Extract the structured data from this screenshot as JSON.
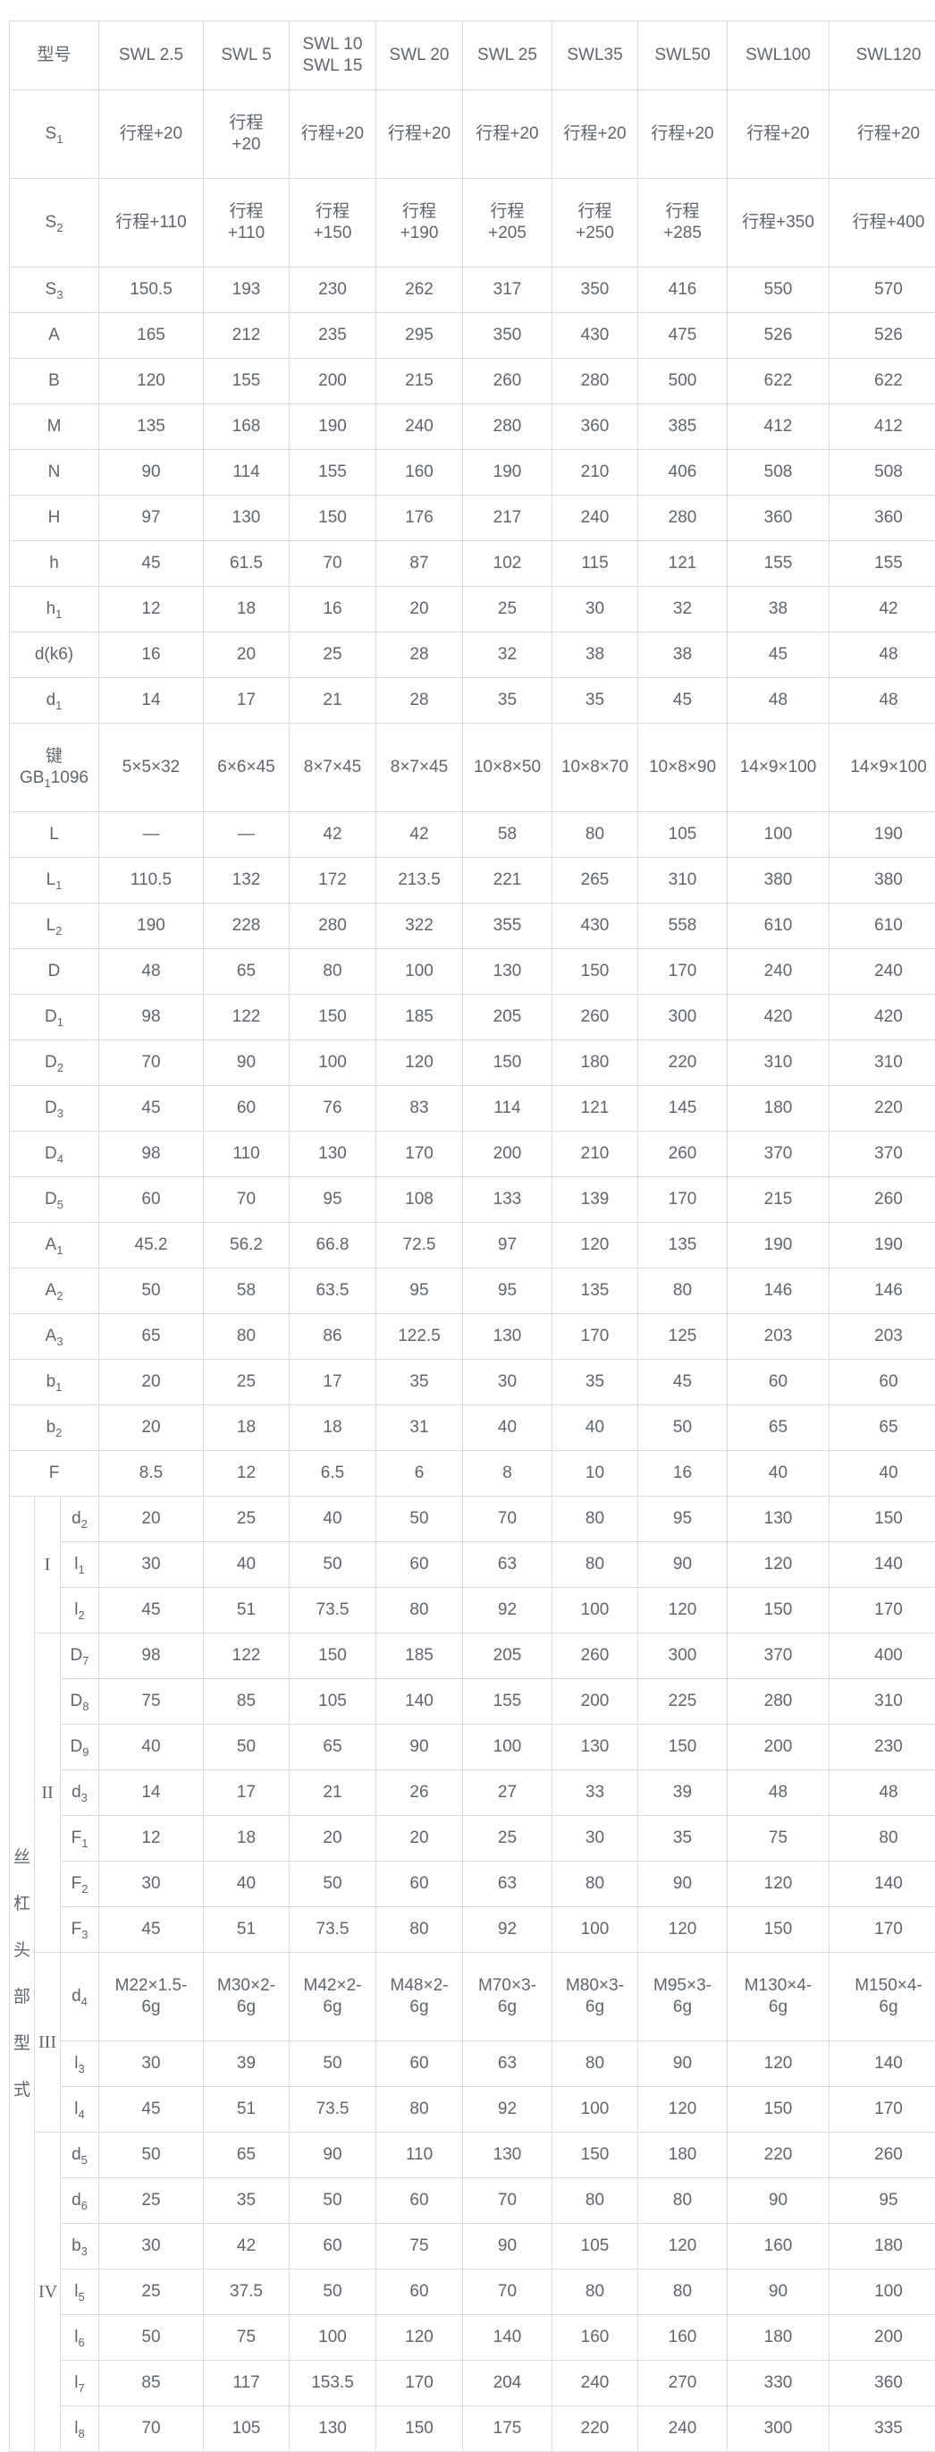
{
  "colors": {
    "text": "#5f656b",
    "border": "#d9dbdd",
    "background": "#ffffff"
  },
  "table": {
    "header": {
      "model_label": "型号",
      "columns": [
        "SWL 2.5",
        "SWL 5",
        "SWL 10\nSWL 15",
        "SWL 20",
        "SWL 25",
        "SWL35",
        "SWL50",
        "SWL100",
        "SWL120"
      ]
    },
    "main_rows": [
      {
        "label": "S_1",
        "tall": true,
        "values": [
          "行程+20",
          "行程\n+20",
          "行程+20",
          "行程+20",
          "行程+20",
          "行程+20",
          "行程+20",
          "行程+20",
          "行程+20"
        ]
      },
      {
        "label": "S_2",
        "tall": true,
        "values": [
          "行程+110",
          "行程\n+110",
          "行程\n+150",
          "行程\n+190",
          "行程\n+205",
          "行程\n+250",
          "行程\n+285",
          "行程+350",
          "行程+400"
        ]
      },
      {
        "label": "S_3",
        "values": [
          "150.5",
          "193",
          "230",
          "262",
          "317",
          "350",
          "416",
          "550",
          "570"
        ]
      },
      {
        "label": "A",
        "values": [
          "165",
          "212",
          "235",
          "295",
          "350",
          "430",
          "475",
          "526",
          "526"
        ]
      },
      {
        "label": "B",
        "values": [
          "120",
          "155",
          "200",
          "215",
          "260",
          "280",
          "500",
          "622",
          "622"
        ]
      },
      {
        "label": "M",
        "values": [
          "135",
          "168",
          "190",
          "240",
          "280",
          "360",
          "385",
          "412",
          "412"
        ]
      },
      {
        "label": "N",
        "values": [
          "90",
          "114",
          "155",
          "160",
          "190",
          "210",
          "406",
          "508",
          "508"
        ]
      },
      {
        "label": "H",
        "values": [
          "97",
          "130",
          "150",
          "176",
          "217",
          "240",
          "280",
          "360",
          "360"
        ]
      },
      {
        "label": "h",
        "values": [
          "45",
          "61.5",
          "70",
          "87",
          "102",
          "115",
          "121",
          "155",
          "155"
        ]
      },
      {
        "label": "h_1",
        "values": [
          "12",
          "18",
          "16",
          "20",
          "25",
          "30",
          "32",
          "38",
          "42"
        ]
      },
      {
        "label": "d(k6)",
        "values": [
          "16",
          "20",
          "25",
          "28",
          "32",
          "38",
          "38",
          "45",
          "48"
        ]
      },
      {
        "label": "d_1",
        "values": [
          "14",
          "17",
          "21",
          "28",
          "35",
          "35",
          "45",
          "48",
          "48"
        ]
      },
      {
        "label": "键\nGB_1_1096",
        "tall": true,
        "values": [
          "5×5×32",
          "6×6×45",
          "8×7×45",
          "8×7×45",
          "10×8×50",
          "10×8×70",
          "10×8×90",
          "14×9×100",
          "14×9×100"
        ]
      },
      {
        "label": "L",
        "values": [
          "—",
          "—",
          "42",
          "42",
          "58",
          "80",
          "105",
          "100",
          "190"
        ]
      },
      {
        "label": "L_1",
        "values": [
          "110.5",
          "132",
          "172",
          "213.5",
          "221",
          "265",
          "310",
          "380",
          "380"
        ]
      },
      {
        "label": "L_2",
        "values": [
          "190",
          "228",
          "280",
          "322",
          "355",
          "430",
          "558",
          "610",
          "610"
        ]
      },
      {
        "label": "D",
        "values": [
          "48",
          "65",
          "80",
          "100",
          "130",
          "150",
          "170",
          "240",
          "240"
        ]
      },
      {
        "label": "D_1",
        "values": [
          "98",
          "122",
          "150",
          "185",
          "205",
          "260",
          "300",
          "420",
          "420"
        ]
      },
      {
        "label": "D_2",
        "values": [
          "70",
          "90",
          "100",
          "120",
          "150",
          "180",
          "220",
          "310",
          "310"
        ]
      },
      {
        "label": "D_3",
        "values": [
          "45",
          "60",
          "76",
          "83",
          "114",
          "121",
          "145",
          "180",
          "220"
        ]
      },
      {
        "label": "D_4",
        "values": [
          "98",
          "110",
          "130",
          "170",
          "200",
          "210",
          "260",
          "370",
          "370"
        ]
      },
      {
        "label": "D_5",
        "values": [
          "60",
          "70",
          "95",
          "108",
          "133",
          "139",
          "170",
          "215",
          "260"
        ]
      },
      {
        "label": "A_1",
        "values": [
          "45.2",
          "56.2",
          "66.8",
          "72.5",
          "97",
          "120",
          "135",
          "190",
          "190"
        ]
      },
      {
        "label": "A_2",
        "values": [
          "50",
          "58",
          "63.5",
          "95",
          "95",
          "135",
          "80",
          "146",
          "146"
        ]
      },
      {
        "label": "A_3",
        "values": [
          "65",
          "80",
          "86",
          "122.5",
          "130",
          "170",
          "125",
          "203",
          "203"
        ]
      },
      {
        "label": "b_1",
        "values": [
          "20",
          "25",
          "17",
          "35",
          "30",
          "35",
          "45",
          "60",
          "60"
        ]
      },
      {
        "label": "b_2",
        "values": [
          "20",
          "18",
          "18",
          "31",
          "40",
          "40",
          "50",
          "65",
          "65"
        ]
      },
      {
        "label": "F",
        "values": [
          "8.5",
          "12",
          "6.5",
          "6",
          "8",
          "10",
          "16",
          "40",
          "40"
        ]
      }
    ],
    "head_type_section": {
      "side_label": "丝杠头部型式",
      "groups": [
        {
          "numeral": "I",
          "rows": [
            {
              "label": "d_2",
              "values": [
                "20",
                "25",
                "40",
                "50",
                "70",
                "80",
                "95",
                "130",
                "150"
              ]
            },
            {
              "label": "l_1",
              "values": [
                "30",
                "40",
                "50",
                "60",
                "63",
                "80",
                "90",
                "120",
                "140"
              ]
            },
            {
              "label": "l_2",
              "values": [
                "45",
                "51",
                "73.5",
                "80",
                "92",
                "100",
                "120",
                "150",
                "170"
              ]
            }
          ]
        },
        {
          "numeral": "II",
          "rows": [
            {
              "label": "D_7",
              "values": [
                "98",
                "122",
                "150",
                "185",
                "205",
                "260",
                "300",
                "370",
                "400"
              ]
            },
            {
              "label": "D_8",
              "values": [
                "75",
                "85",
                "105",
                "140",
                "155",
                "200",
                "225",
                "280",
                "310"
              ]
            },
            {
              "label": "D_9",
              "values": [
                "40",
                "50",
                "65",
                "90",
                "100",
                "130",
                "150",
                "200",
                "230"
              ]
            },
            {
              "label": "d_3",
              "values": [
                "14",
                "17",
                "21",
                "26",
                "27",
                "33",
                "39",
                "48",
                "48"
              ]
            },
            {
              "label": "F_1",
              "values": [
                "12",
                "18",
                "20",
                "20",
                "25",
                "30",
                "35",
                "75",
                "80"
              ]
            },
            {
              "label": "F_2",
              "values": [
                "30",
                "40",
                "50",
                "60",
                "63",
                "80",
                "90",
                "120",
                "140"
              ]
            },
            {
              "label": "F_3",
              "values": [
                "45",
                "51",
                "73.5",
                "80",
                "92",
                "100",
                "120",
                "150",
                "170"
              ]
            }
          ]
        },
        {
          "numeral": "III",
          "rows": [
            {
              "label": "d_4",
              "tall": true,
              "values": [
                "M22×1.5-\n6g",
                "M30×2-\n6g",
                "M42×2-\n6g",
                "M48×2-\n6g",
                "M70×3-\n6g",
                "M80×3-\n6g",
                "M95×3-\n6g",
                "M130×4-\n6g",
                "M150×4-\n6g"
              ]
            },
            {
              "label": "l_3",
              "values": [
                "30",
                "39",
                "50",
                "60",
                "63",
                "80",
                "90",
                "120",
                "140"
              ]
            },
            {
              "label": "l_4",
              "values": [
                "45",
                "51",
                "73.5",
                "80",
                "92",
                "100",
                "120",
                "150",
                "170"
              ]
            }
          ]
        },
        {
          "numeral": "IV",
          "rows": [
            {
              "label": "d_5",
              "values": [
                "50",
                "65",
                "90",
                "110",
                "130",
                "150",
                "180",
                "220",
                "260"
              ]
            },
            {
              "label": "d_6",
              "values": [
                "25",
                "35",
                "50",
                "60",
                "70",
                "80",
                "80",
                "90",
                "95"
              ]
            },
            {
              "label": "b_3",
              "values": [
                "30",
                "42",
                "60",
                "75",
                "90",
                "105",
                "120",
                "160",
                "180"
              ]
            },
            {
              "label": "l_5",
              "values": [
                "25",
                "37.5",
                "50",
                "60",
                "70",
                "80",
                "80",
                "90",
                "100"
              ]
            },
            {
              "label": "l_6",
              "values": [
                "50",
                "75",
                "100",
                "120",
                "140",
                "160",
                "160",
                "180",
                "200"
              ]
            },
            {
              "label": "l_7",
              "values": [
                "85",
                "117",
                "153.5",
                "170",
                "204",
                "240",
                "270",
                "330",
                "360"
              ]
            },
            {
              "label": "l_8",
              "values": [
                "70",
                "105",
                "130",
                "150",
                "175",
                "220",
                "240",
                "300",
                "335"
              ]
            }
          ]
        }
      ]
    }
  }
}
